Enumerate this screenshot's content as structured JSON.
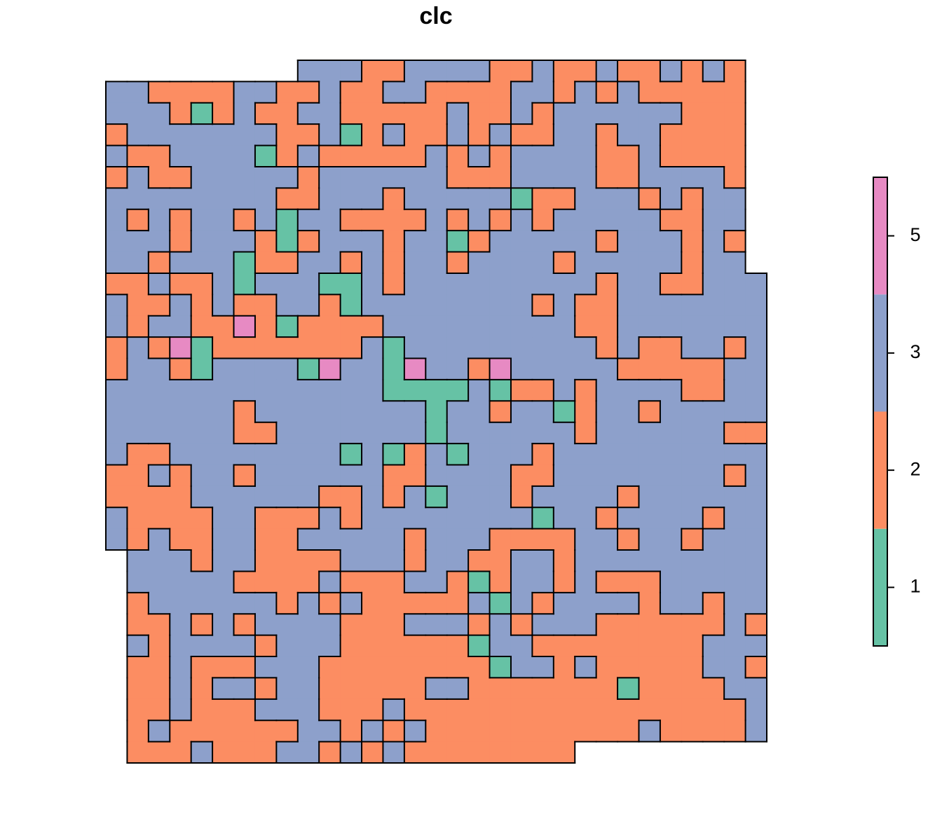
{
  "chart_data": {
    "type": "raster",
    "title": "clc",
    "classes": [
      1,
      2,
      3,
      5
    ],
    "colors": [
      "#66c2a5",
      "#fc8d62",
      "#8da0cb",
      "#e78ac3"
    ],
    "values": [
      [
        null,
        null,
        null,
        null,
        null,
        null,
        null,
        null,
        null,
        3,
        3,
        3,
        2,
        2,
        3,
        3,
        3,
        3,
        2,
        2,
        3,
        2,
        2,
        3,
        2,
        2,
        3,
        2,
        3,
        2,
        null
      ],
      [
        3,
        3,
        2,
        2,
        2,
        2,
        3,
        3,
        2,
        2,
        3,
        2,
        2,
        3,
        3,
        2,
        2,
        2,
        2,
        3,
        3,
        2,
        3,
        2,
        3,
        2,
        2,
        2,
        2,
        2,
        null
      ],
      [
        3,
        3,
        3,
        2,
        1,
        2,
        3,
        2,
        2,
        3,
        3,
        2,
        2,
        2,
        2,
        2,
        3,
        2,
        2,
        3,
        2,
        3,
        3,
        3,
        3,
        3,
        3,
        2,
        2,
        2,
        null
      ],
      [
        2,
        3,
        3,
        3,
        3,
        3,
        3,
        3,
        2,
        2,
        3,
        1,
        2,
        3,
        2,
        2,
        3,
        2,
        3,
        2,
        2,
        3,
        3,
        2,
        3,
        3,
        2,
        2,
        2,
        2,
        null
      ],
      [
        3,
        2,
        2,
        3,
        3,
        3,
        3,
        1,
        2,
        3,
        2,
        2,
        2,
        2,
        2,
        3,
        2,
        3,
        2,
        3,
        3,
        3,
        3,
        2,
        2,
        3,
        2,
        2,
        2,
        2,
        null
      ],
      [
        2,
        3,
        2,
        2,
        3,
        3,
        3,
        3,
        3,
        2,
        3,
        3,
        3,
        3,
        3,
        3,
        2,
        2,
        2,
        3,
        3,
        3,
        3,
        2,
        2,
        3,
        3,
        3,
        3,
        2,
        null
      ],
      [
        3,
        3,
        3,
        3,
        3,
        3,
        3,
        3,
        2,
        2,
        3,
        3,
        3,
        2,
        3,
        3,
        3,
        3,
        3,
        1,
        2,
        2,
        3,
        3,
        3,
        2,
        3,
        2,
        3,
        3,
        null
      ],
      [
        3,
        2,
        3,
        2,
        3,
        3,
        2,
        3,
        1,
        3,
        3,
        2,
        2,
        2,
        2,
        3,
        2,
        3,
        2,
        3,
        2,
        3,
        3,
        3,
        3,
        3,
        2,
        2,
        3,
        3,
        null
      ],
      [
        3,
        3,
        3,
        2,
        3,
        3,
        3,
        2,
        1,
        2,
        3,
        3,
        3,
        2,
        3,
        3,
        1,
        2,
        3,
        3,
        3,
        3,
        3,
        2,
        3,
        3,
        3,
        2,
        3,
        2,
        null
      ],
      [
        3,
        3,
        2,
        3,
        3,
        3,
        1,
        2,
        2,
        3,
        3,
        2,
        3,
        2,
        3,
        3,
        2,
        3,
        3,
        3,
        3,
        2,
        3,
        3,
        3,
        3,
        3,
        2,
        3,
        3,
        null
      ],
      [
        2,
        2,
        3,
        2,
        2,
        3,
        1,
        3,
        3,
        3,
        1,
        1,
        3,
        2,
        3,
        3,
        3,
        3,
        3,
        3,
        3,
        3,
        3,
        2,
        3,
        3,
        2,
        2,
        3,
        3,
        3
      ],
      [
        3,
        2,
        2,
        3,
        2,
        3,
        2,
        2,
        3,
        3,
        2,
        1,
        3,
        3,
        3,
        3,
        3,
        3,
        3,
        3,
        2,
        3,
        2,
        2,
        3,
        3,
        3,
        3,
        3,
        3,
        3
      ],
      [
        3,
        2,
        3,
        3,
        2,
        2,
        5,
        2,
        1,
        2,
        2,
        2,
        2,
        3,
        3,
        3,
        3,
        3,
        3,
        3,
        3,
        3,
        2,
        2,
        3,
        3,
        3,
        3,
        3,
        3,
        3
      ],
      [
        2,
        3,
        2,
        5,
        1,
        2,
        2,
        2,
        2,
        2,
        2,
        2,
        3,
        1,
        3,
        3,
        3,
        3,
        3,
        3,
        3,
        3,
        3,
        2,
        3,
        2,
        2,
        3,
        3,
        2,
        3
      ],
      [
        2,
        3,
        3,
        2,
        1,
        3,
        3,
        3,
        3,
        1,
        5,
        3,
        3,
        1,
        5,
        3,
        3,
        2,
        5,
        3,
        3,
        3,
        3,
        3,
        2,
        2,
        2,
        2,
        2,
        3,
        3
      ],
      [
        3,
        3,
        3,
        3,
        3,
        3,
        3,
        3,
        3,
        3,
        3,
        3,
        3,
        1,
        1,
        1,
        1,
        3,
        1,
        2,
        2,
        3,
        2,
        3,
        3,
        3,
        3,
        2,
        2,
        3,
        3
      ],
      [
        3,
        3,
        3,
        3,
        3,
        3,
        2,
        3,
        3,
        3,
        3,
        3,
        3,
        3,
        3,
        1,
        3,
        3,
        2,
        3,
        3,
        1,
        2,
        3,
        3,
        2,
        3,
        3,
        3,
        3,
        3
      ],
      [
        3,
        3,
        3,
        3,
        3,
        3,
        2,
        2,
        3,
        3,
        3,
        3,
        3,
        3,
        3,
        1,
        3,
        3,
        3,
        3,
        3,
        3,
        2,
        3,
        3,
        3,
        3,
        3,
        3,
        2,
        2
      ],
      [
        3,
        2,
        2,
        3,
        3,
        3,
        3,
        3,
        3,
        3,
        3,
        1,
        3,
        1,
        2,
        3,
        1,
        3,
        3,
        3,
        2,
        3,
        3,
        3,
        3,
        3,
        3,
        3,
        3,
        3,
        3
      ],
      [
        2,
        2,
        3,
        2,
        3,
        3,
        2,
        3,
        3,
        3,
        3,
        3,
        3,
        2,
        2,
        3,
        3,
        3,
        3,
        2,
        2,
        3,
        3,
        3,
        3,
        3,
        3,
        3,
        3,
        2,
        3
      ],
      [
        2,
        2,
        2,
        2,
        3,
        3,
        3,
        3,
        3,
        3,
        2,
        2,
        3,
        2,
        3,
        1,
        3,
        3,
        3,
        2,
        3,
        3,
        3,
        3,
        2,
        3,
        3,
        3,
        3,
        3,
        3
      ],
      [
        3,
        2,
        2,
        2,
        2,
        3,
        3,
        2,
        2,
        2,
        3,
        2,
        3,
        3,
        3,
        3,
        3,
        3,
        3,
        3,
        1,
        3,
        3,
        2,
        3,
        3,
        3,
        3,
        2,
        3,
        3
      ],
      [
        3,
        2,
        3,
        2,
        2,
        3,
        3,
        2,
        2,
        3,
        3,
        3,
        3,
        3,
        2,
        3,
        3,
        3,
        2,
        2,
        2,
        2,
        3,
        3,
        2,
        3,
        3,
        2,
        3,
        3,
        3
      ],
      [
        null,
        3,
        3,
        3,
        2,
        3,
        3,
        2,
        2,
        2,
        2,
        3,
        3,
        3,
        2,
        3,
        3,
        2,
        2,
        3,
        3,
        2,
        3,
        3,
        3,
        3,
        3,
        3,
        3,
        3,
        3
      ],
      [
        null,
        3,
        3,
        3,
        3,
        3,
        2,
        2,
        2,
        2,
        3,
        2,
        2,
        2,
        3,
        3,
        2,
        1,
        2,
        3,
        3,
        2,
        3,
        2,
        2,
        2,
        3,
        3,
        3,
        3,
        3
      ],
      [
        null,
        2,
        3,
        3,
        3,
        3,
        3,
        3,
        2,
        3,
        2,
        3,
        2,
        2,
        2,
        2,
        2,
        3,
        1,
        3,
        2,
        3,
        3,
        3,
        3,
        2,
        3,
        3,
        2,
        3,
        3
      ],
      [
        null,
        2,
        2,
        3,
        2,
        3,
        2,
        3,
        3,
        3,
        3,
        2,
        2,
        2,
        3,
        3,
        3,
        2,
        3,
        2,
        3,
        3,
        3,
        2,
        2,
        2,
        2,
        2,
        2,
        3,
        2
      ],
      [
        null,
        3,
        2,
        3,
        3,
        3,
        3,
        2,
        3,
        3,
        3,
        2,
        2,
        2,
        2,
        2,
        2,
        1,
        3,
        3,
        2,
        2,
        2,
        2,
        2,
        2,
        2,
        2,
        3,
        3,
        3
      ],
      [
        null,
        2,
        2,
        3,
        2,
        2,
        2,
        3,
        3,
        3,
        2,
        2,
        2,
        2,
        2,
        2,
        2,
        2,
        1,
        3,
        3,
        2,
        3,
        2,
        2,
        2,
        2,
        2,
        3,
        3,
        2
      ],
      [
        null,
        2,
        2,
        3,
        2,
        3,
        3,
        2,
        3,
        3,
        2,
        2,
        2,
        2,
        2,
        3,
        3,
        2,
        2,
        2,
        2,
        2,
        2,
        2,
        1,
        2,
        2,
        2,
        2,
        3,
        3
      ],
      [
        null,
        2,
        2,
        3,
        2,
        2,
        2,
        3,
        3,
        3,
        2,
        2,
        2,
        3,
        2,
        2,
        2,
        2,
        2,
        2,
        2,
        2,
        2,
        2,
        2,
        2,
        2,
        2,
        2,
        2,
        3
      ],
      [
        null,
        2,
        3,
        2,
        2,
        2,
        2,
        2,
        2,
        3,
        3,
        2,
        3,
        2,
        3,
        2,
        2,
        2,
        2,
        2,
        2,
        2,
        2,
        2,
        2,
        3,
        2,
        2,
        2,
        2,
        3
      ],
      [
        null,
        2,
        2,
        2,
        3,
        2,
        2,
        2,
        3,
        3,
        2,
        3,
        2,
        3,
        2,
        2,
        2,
        2,
        2,
        2,
        2,
        2,
        null,
        null,
        null,
        null,
        null,
        null,
        null,
        null,
        null
      ]
    ]
  }
}
